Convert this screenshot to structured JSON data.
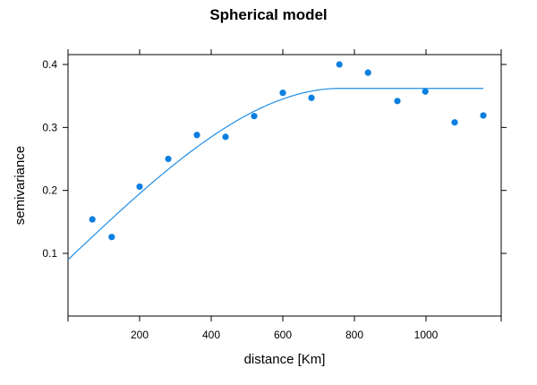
{
  "chart_data": {
    "type": "scatter",
    "title": "Spherical model",
    "xlabel": "distance [Km]",
    "ylabel": "semivariance",
    "xlim": [
      0,
      1200
    ],
    "ylim": [
      0,
      0.4
    ],
    "x_ticks": [
      200,
      400,
      600,
      800,
      1000
    ],
    "y_ticks": [
      0.1,
      0.2,
      0.3,
      0.4
    ],
    "x_tick_labels": [
      "200",
      "400",
      "600",
      "800",
      "1000"
    ],
    "y_tick_labels": [
      "0.1",
      "0.2",
      "0.3",
      "0.4"
    ],
    "grid": false,
    "point_color": "#0b7fe0",
    "line_color": "#1f8ee6",
    "points": [
      {
        "x": 68,
        "y": 0.154
      },
      {
        "x": 122,
        "y": 0.126
      },
      {
        "x": 200,
        "y": 0.206
      },
      {
        "x": 280,
        "y": 0.25
      },
      {
        "x": 360,
        "y": 0.288
      },
      {
        "x": 440,
        "y": 0.285
      },
      {
        "x": 520,
        "y": 0.318
      },
      {
        "x": 600,
        "y": 0.355
      },
      {
        "x": 680,
        "y": 0.347
      },
      {
        "x": 758,
        "y": 0.4
      },
      {
        "x": 838,
        "y": 0.387
      },
      {
        "x": 920,
        "y": 0.342
      },
      {
        "x": 998,
        "y": 0.357
      },
      {
        "x": 1080,
        "y": 0.308
      },
      {
        "x": 1160,
        "y": 0.319
      }
    ],
    "model": {
      "name": "spherical",
      "nugget": 0.09,
      "sill": 0.362,
      "range": 760,
      "x_end": 1160
    }
  }
}
